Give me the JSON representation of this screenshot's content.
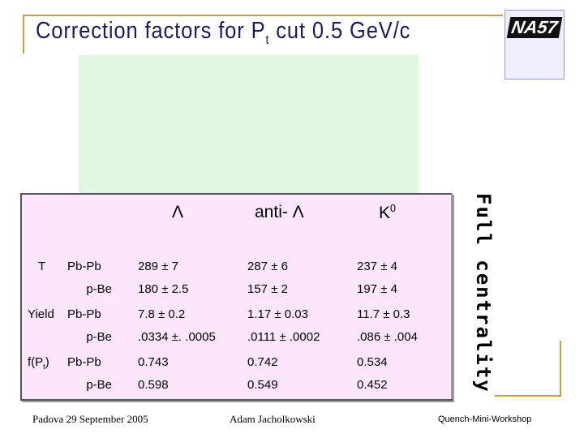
{
  "title": {
    "main": "Correction factors for  P",
    "sub": "t",
    "tail": " cut 0.5 GeV/c"
  },
  "logo": {
    "text": "NA57"
  },
  "side_label": "Full centrality",
  "table": {
    "header": [
      {
        "main": "Λ"
      },
      {
        "main": "anti- Λ"
      },
      {
        "main": "K",
        "sup": "0"
      }
    ],
    "groups": [
      {
        "label": {
          "main": "T"
        },
        "rows": [
          {
            "system": "Pb-Pb",
            "cells": [
              "289 ± 7",
              "287 ± 6",
              "237 ± 4"
            ]
          },
          {
            "system": "p-Be",
            "cells": [
              "180 ± 2.5",
              "157 ± 2",
              "197 ± 4"
            ]
          }
        ]
      },
      {
        "label": {
          "main": "Yield"
        },
        "rows": [
          {
            "system": "Pb-Pb",
            "cells": [
              "7.8 ± 0.2",
              "1.17 ± 0.03",
              "11.7 ± 0.3"
            ]
          },
          {
            "system": "p-Be",
            "cells": [
              ".0334 ±. .0005",
              ".0111 ± .0002",
              ".086 ± .004"
            ]
          }
        ]
      },
      {
        "label": {
          "main": "f(P",
          "sub": "t",
          "tail": ")"
        },
        "rows": [
          {
            "system": "Pb-Pb",
            "cells": [
              "0.743",
              "0.742",
              "0.534"
            ]
          },
          {
            "system": "p-Be",
            "cells": [
              "0.598",
              "0.549",
              "0.452"
            ]
          }
        ]
      }
    ]
  },
  "footer": {
    "left": "Padova 29 September 2005",
    "center": "Adam Jacholkowski",
    "right": "Quench-Mini-Workshop"
  }
}
